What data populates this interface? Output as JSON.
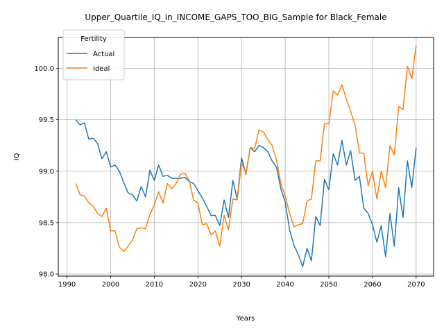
{
  "chart_data": {
    "type": "line",
    "title": "Upper_Quartile_IQ_in_INCOME_GAPS_TOO_BIG_Sample for Black_Female",
    "xlabel": "Years",
    "ylabel": "IQ",
    "xlim": [
      1988,
      2074
    ],
    "ylim": [
      97.98,
      100.3
    ],
    "xticks": [
      1990,
      2000,
      2010,
      2020,
      2030,
      2040,
      2050,
      2060,
      2070
    ],
    "yticks": [
      98.0,
      98.5,
      99.0,
      99.5,
      100.0
    ],
    "grid": true,
    "legend": {
      "title": "Fertility",
      "placement": "top-left"
    },
    "x": [
      1992,
      1993,
      1994,
      1995,
      1996,
      1997,
      1998,
      1999,
      2000,
      2001,
      2002,
      2003,
      2004,
      2005,
      2006,
      2007,
      2008,
      2009,
      2010,
      2011,
      2012,
      2013,
      2014,
      2015,
      2016,
      2017,
      2018,
      2019,
      2020,
      2021,
      2022,
      2023,
      2024,
      2025,
      2026,
      2027,
      2028,
      2029,
      2030,
      2031,
      2032,
      2033,
      2034,
      2035,
      2036,
      2037,
      2038,
      2039,
      2040,
      2041,
      2042,
      2043,
      2044,
      2045,
      2046,
      2047,
      2048,
      2049,
      2050,
      2051,
      2052,
      2053,
      2054,
      2055,
      2056,
      2057,
      2058,
      2059,
      2060,
      2061,
      2062,
      2063,
      2064,
      2065,
      2066,
      2067,
      2068,
      2069,
      2070
    ],
    "series": [
      {
        "name": "Actual",
        "color": "#1f77b4",
        "values": [
          99.5,
          99.45,
          99.47,
          99.31,
          99.32,
          99.27,
          99.12,
          99.19,
          99.04,
          99.06,
          99.0,
          98.89,
          98.79,
          98.77,
          98.71,
          98.85,
          98.75,
          99.01,
          98.91,
          99.06,
          98.95,
          98.96,
          98.93,
          98.93,
          98.93,
          98.94,
          98.9,
          98.88,
          98.81,
          98.74,
          98.66,
          98.57,
          98.57,
          98.47,
          98.72,
          98.55,
          98.91,
          98.73,
          99.13,
          98.97,
          99.23,
          99.19,
          99.25,
          99.23,
          99.19,
          99.1,
          99.04,
          98.83,
          98.7,
          98.43,
          98.28,
          98.19,
          98.07,
          98.25,
          98.13,
          98.56,
          98.47,
          98.92,
          98.82,
          99.17,
          99.06,
          99.3,
          99.06,
          99.2,
          98.91,
          98.95,
          98.64,
          98.59,
          98.48,
          98.31,
          98.47,
          98.17,
          98.59,
          98.27,
          98.84,
          98.55,
          99.1,
          98.84,
          99.23
        ]
      },
      {
        "name": "Ideal",
        "color": "#ff7f0e",
        "values": [
          98.88,
          98.77,
          98.76,
          98.69,
          98.66,
          98.59,
          98.56,
          98.64,
          98.42,
          98.42,
          98.26,
          98.22,
          98.27,
          98.33,
          98.44,
          98.45,
          98.44,
          98.58,
          98.67,
          98.8,
          98.69,
          98.88,
          98.83,
          98.88,
          98.97,
          98.98,
          98.91,
          98.72,
          98.69,
          98.48,
          98.49,
          98.38,
          98.42,
          98.27,
          98.57,
          98.43,
          98.73,
          98.72,
          99.08,
          98.98,
          99.23,
          99.22,
          99.4,
          99.38,
          99.31,
          99.25,
          99.11,
          98.88,
          98.76,
          98.59,
          98.46,
          98.48,
          98.49,
          98.71,
          98.73,
          99.1,
          99.1,
          99.46,
          99.46,
          99.78,
          99.74,
          99.84,
          99.7,
          99.58,
          99.45,
          99.18,
          99.17,
          98.86,
          99.0,
          98.73,
          99.0,
          98.84,
          99.25,
          99.16,
          99.63,
          99.6,
          100.02,
          99.9,
          100.22
        ]
      }
    ]
  }
}
